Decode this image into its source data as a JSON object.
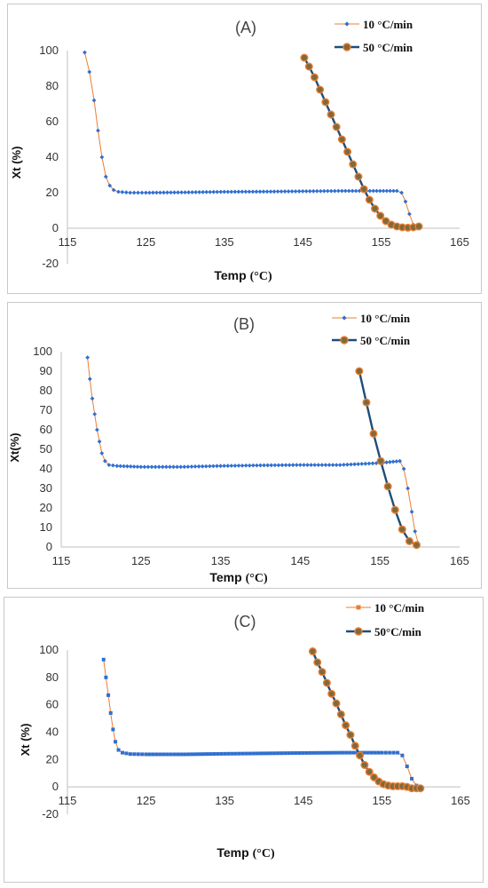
{
  "colors": {
    "slow_line": "#ED7D31",
    "slow_marker": "#2F6FD0",
    "fast_line": "#1F4E79",
    "fast_marker_fill": "#7F6A3C",
    "fast_marker_edge": "#ED7D31",
    "axis": "#BFBFBF"
  },
  "chart_data": [
    {
      "type": "line",
      "panel_label": "(A)",
      "xlabel": "Temp",
      "xlabel_unit": "(°C)",
      "ylabel": "Xt (%)",
      "xlim": [
        115,
        165
      ],
      "ylim": [
        -20,
        100
      ],
      "xticks": [
        115,
        125,
        135,
        145,
        155,
        165
      ],
      "yticks": [
        -20,
        0,
        20,
        40,
        60,
        80,
        100
      ],
      "legend": "top-right",
      "series": [
        {
          "name": "10 °C/min",
          "style": "line-small-diamond",
          "x": [
            117.2,
            117.8,
            118.4,
            118.9,
            119.4,
            119.9,
            120.4,
            120.9,
            121.5,
            123,
            125,
            130,
            135,
            140,
            145,
            150,
            154,
            157,
            157.6,
            158.1,
            158.6,
            159.1,
            159.5
          ],
          "y": [
            99,
            88,
            72,
            55,
            40,
            29,
            24,
            21.5,
            20.5,
            20,
            20,
            20.2,
            20.5,
            20.6,
            20.8,
            21,
            21,
            21,
            20,
            15,
            8,
            2,
            0
          ]
        },
        {
          "name": "50 °C/min",
          "style": "line-large-circle",
          "x": [
            145.2,
            145.8,
            146.5,
            147.2,
            147.9,
            148.6,
            149.3,
            150,
            150.7,
            151.4,
            152.1,
            152.8,
            153.5,
            154.2,
            154.9,
            155.6,
            156.3,
            157,
            157.7,
            158.4,
            159.1,
            159.8
          ],
          "y": [
            96,
            91,
            85,
            78,
            71,
            64,
            57,
            50,
            43,
            36,
            29,
            22,
            16,
            11,
            7,
            4,
            2,
            1,
            0.5,
            0.3,
            0.5,
            1
          ]
        }
      ]
    },
    {
      "type": "line",
      "panel_label": "(B)",
      "xlabel": "Temp",
      "xlabel_unit": "(°C)",
      "ylabel": "Xt(%)",
      "xlim": [
        115,
        165
      ],
      "ylim": [
        0,
        100
      ],
      "xticks": [
        115,
        125,
        135,
        145,
        155,
        165
      ],
      "yticks": [
        0,
        10,
        20,
        30,
        40,
        50,
        60,
        70,
        80,
        90,
        100
      ],
      "legend": "top-right",
      "series": [
        {
          "name": "10 °C/min",
          "style": "line-small-diamond",
          "x": [
            118.3,
            118.6,
            118.9,
            119.2,
            119.5,
            119.8,
            120.1,
            120.5,
            121,
            122,
            125,
            130,
            135,
            140,
            145,
            150,
            155,
            157.5,
            158,
            158.5,
            159,
            159.4,
            159.8
          ],
          "y": [
            97,
            86,
            76,
            68,
            60,
            54,
            48,
            44,
            42,
            41.5,
            41,
            41,
            41.5,
            41.8,
            42,
            42,
            43,
            44,
            40,
            30,
            18,
            8,
            2
          ]
        },
        {
          "name": "50 °C/min",
          "style": "line-large-circle",
          "x": [
            152.4,
            153.3,
            154.2,
            155.1,
            156,
            156.9,
            157.8,
            158.7,
            159.6
          ],
          "y": [
            90,
            74,
            58,
            44,
            31,
            19,
            9,
            3,
            1
          ]
        }
      ]
    },
    {
      "type": "line",
      "panel_label": "(C)",
      "xlabel": "Temp",
      "xlabel_unit": "(°C)",
      "ylabel": "Xt (%)",
      "xlim": [
        115,
        165
      ],
      "ylim": [
        -20,
        100
      ],
      "xticks": [
        115,
        125,
        135,
        145,
        155,
        165
      ],
      "yticks": [
        -20,
        0,
        20,
        40,
        60,
        80,
        100
      ],
      "legend": "top-right",
      "series": [
        {
          "name": "10 °C/min",
          "style": "line-small-square",
          "x": [
            119.6,
            119.9,
            120.2,
            120.5,
            120.8,
            121.1,
            121.5,
            122,
            123,
            125,
            130,
            135,
            140,
            145,
            150,
            155,
            157,
            157.6,
            158.2,
            158.8,
            159.4,
            159.9
          ],
          "y": [
            93,
            80,
            67,
            54,
            42,
            33,
            27,
            25,
            24,
            23.8,
            23.8,
            24.2,
            24.5,
            24.8,
            25,
            25,
            25,
            23,
            15,
            6,
            1,
            0
          ]
        },
        {
          "name": "50°C/min",
          "style": "line-large-circle-solid",
          "x": [
            146.2,
            146.8,
            147.4,
            148,
            148.6,
            149.2,
            149.8,
            150.4,
            151,
            151.6,
            152.2,
            152.8,
            153.4,
            154,
            154.6,
            155.2,
            155.8,
            156.4,
            157,
            157.6,
            158.2,
            158.8,
            159.4,
            159.9
          ],
          "y": [
            99,
            91,
            84,
            76,
            68,
            61,
            53,
            45,
            38,
            30,
            23,
            16,
            11,
            7,
            4,
            2,
            1,
            0.5,
            0.5,
            0.5,
            0,
            -1,
            -1,
            -1
          ]
        }
      ]
    }
  ]
}
